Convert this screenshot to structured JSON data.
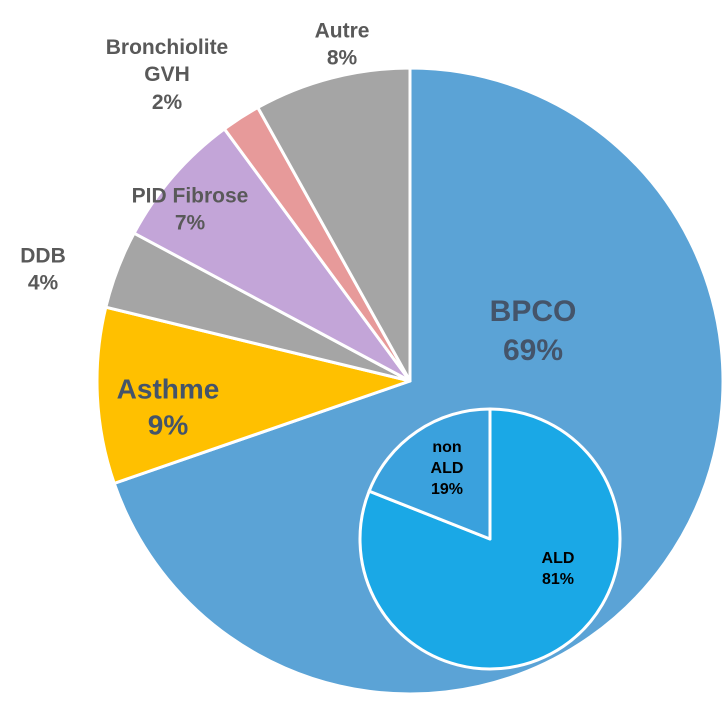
{
  "chart_data": [
    {
      "type": "pie",
      "categories": [
        "BPCO",
        "Asthme",
        "DDB",
        "PID Fibrose",
        "Bronchiolite GVH",
        "Autre"
      ],
      "values": [
        69,
        9,
        4,
        7,
        2,
        8
      ],
      "value_labels": [
        "69%",
        "9%",
        "4%",
        "7%",
        "2%",
        "8%"
      ],
      "colors": [
        "#5ba3d6",
        "#ffc000",
        "#a5a5a5",
        "#c3a5d8",
        "#e79a9a",
        "#a5a5a5"
      ]
    },
    {
      "type": "pie",
      "categories": [
        "ALD",
        "non ALD"
      ],
      "values": [
        81,
        19
      ],
      "value_labels": [
        "81%",
        "19%"
      ],
      "colors": [
        "#1aa8e6",
        "#3aa1dd"
      ]
    }
  ]
}
